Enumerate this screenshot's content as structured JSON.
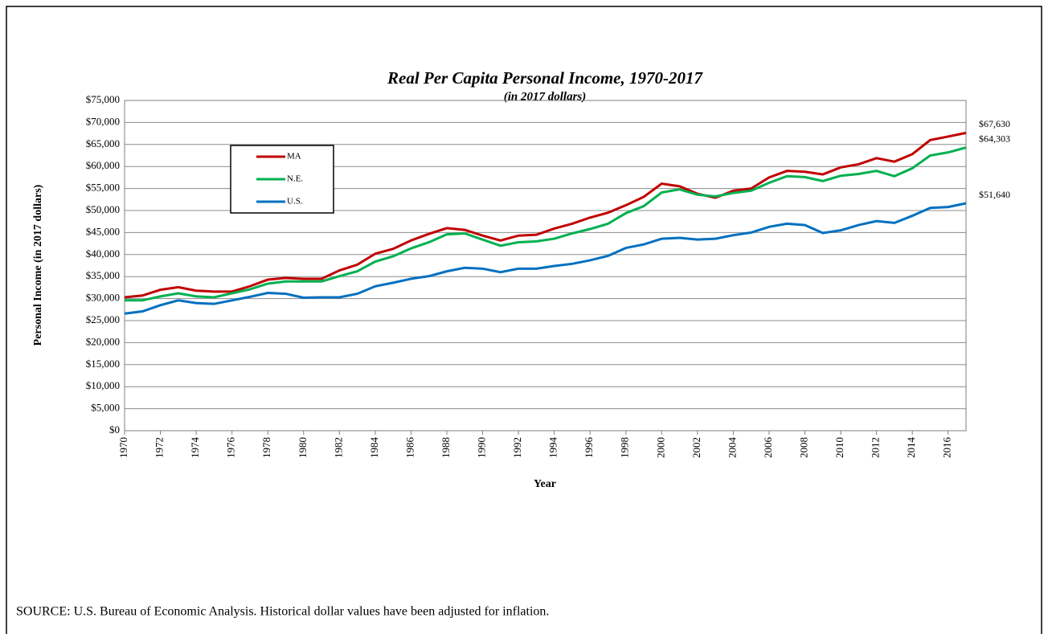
{
  "chart_data": {
    "type": "line",
    "title": "Real Per Capita Personal Income, 1970-2017",
    "subtitle": "(in 2017 dollars)",
    "x_label": "Year",
    "y_label": "Personal Income (in 2017 dollars)",
    "source": "SOURCE:  U.S. Bureau of Economic Analysis. Historical dollar values have been adjusted for inflation.",
    "x": [
      1970,
      1971,
      1972,
      1973,
      1974,
      1975,
      1976,
      1977,
      1978,
      1979,
      1980,
      1981,
      1982,
      1983,
      1984,
      1985,
      1986,
      1987,
      1988,
      1989,
      1990,
      1991,
      1992,
      1993,
      1994,
      1995,
      1996,
      1997,
      1998,
      1999,
      2000,
      2001,
      2002,
      2003,
      2004,
      2005,
      2006,
      2007,
      2008,
      2009,
      2010,
      2011,
      2012,
      2013,
      2014,
      2015,
      2016,
      2017
    ],
    "xlim": [
      1970,
      2017
    ],
    "xticks": [
      1970,
      1972,
      1974,
      1976,
      1978,
      1980,
      1982,
      1984,
      1986,
      1988,
      1990,
      1992,
      1994,
      1996,
      1998,
      2000,
      2002,
      2004,
      2006,
      2008,
      2010,
      2012,
      2014,
      2016
    ],
    "ylim": [
      0,
      75000
    ],
    "yticks": [
      {
        "value": 0,
        "label": "$0"
      },
      {
        "value": 5000,
        "label": "$5,000"
      },
      {
        "value": 10000,
        "label": "$10,000"
      },
      {
        "value": 15000,
        "label": "$15,000"
      },
      {
        "value": 20000,
        "label": "$20,000"
      },
      {
        "value": 25000,
        "label": "$25,000"
      },
      {
        "value": 30000,
        "label": "$30,000"
      },
      {
        "value": 35000,
        "label": "$35,000"
      },
      {
        "value": 40000,
        "label": "$40,000"
      },
      {
        "value": 45000,
        "label": "$45,000"
      },
      {
        "value": 50000,
        "label": "$50,000"
      },
      {
        "value": 55000,
        "label": "$55,000"
      },
      {
        "value": 60000,
        "label": "$60,000"
      },
      {
        "value": 65000,
        "label": "$65,000"
      },
      {
        "value": 70000,
        "label": "$70,000"
      },
      {
        "value": 75000,
        "label": "$75,000"
      }
    ],
    "grid": true,
    "legend": "upper left",
    "series": [
      {
        "name": "MA",
        "color": "#c00000",
        "values": [
          30300,
          30700,
          32000,
          32600,
          31800,
          31600,
          31600,
          32800,
          34300,
          34700,
          34500,
          34500,
          36400,
          37700,
          40200,
          41300,
          43200,
          44700,
          46000,
          45600,
          44300,
          43200,
          44300,
          44500,
          45900,
          47000,
          48400,
          49500,
          51200,
          53100,
          56100,
          55500,
          53800,
          52900,
          54500,
          55000,
          57500,
          59000,
          58800,
          58200,
          59800,
          60500,
          61900,
          61100,
          62800,
          66000,
          66800,
          67630
        ],
        "value_labels": [
          null,
          null,
          null,
          null,
          null,
          null,
          null,
          null,
          null,
          null,
          null,
          null,
          null,
          null,
          null,
          null,
          null,
          null,
          null,
          null,
          null,
          null,
          null,
          null,
          null,
          null,
          null,
          null,
          null,
          null,
          null,
          null,
          null,
          null,
          null,
          null,
          null,
          null,
          null,
          null,
          null,
          null,
          null,
          null,
          null,
          null,
          null,
          "$67,630"
        ]
      },
      {
        "name": "N.E.",
        "color": "#00b050",
        "values": [
          29600,
          29600,
          30500,
          31200,
          30500,
          30300,
          31200,
          32100,
          33400,
          33900,
          33900,
          33900,
          35100,
          36200,
          38400,
          39600,
          41400,
          42800,
          44600,
          44800,
          43400,
          42000,
          42800,
          43000,
          43600,
          44800,
          45800,
          47000,
          49400,
          51000,
          54100,
          54800,
          53600,
          53200,
          54000,
          54500,
          56300,
          57800,
          57600,
          56700,
          57900,
          58300,
          59000,
          57800,
          59600,
          62500,
          63200,
          64303
        ],
        "value_labels": [
          null,
          null,
          null,
          null,
          null,
          null,
          null,
          null,
          null,
          null,
          null,
          null,
          null,
          null,
          null,
          null,
          null,
          null,
          null,
          null,
          null,
          null,
          null,
          null,
          null,
          null,
          null,
          null,
          null,
          null,
          null,
          null,
          null,
          null,
          null,
          null,
          null,
          null,
          null,
          null,
          null,
          null,
          null,
          null,
          null,
          null,
          null,
          "$64,303"
        ]
      },
      {
        "name": "U.S.",
        "color": "#0070c0",
        "values": [
          26600,
          27100,
          28500,
          29600,
          29000,
          28800,
          29600,
          30400,
          31300,
          31100,
          30200,
          30300,
          30300,
          31100,
          32800,
          33600,
          34500,
          35100,
          36200,
          37000,
          36800,
          36000,
          36800,
          36800,
          37400,
          37900,
          38700,
          39700,
          41500,
          42300,
          43600,
          43800,
          43400,
          43600,
          44400,
          45000,
          46300,
          47000,
          46700,
          44900,
          45500,
          46700,
          47600,
          47200,
          48800,
          50600,
          50800,
          51640
        ],
        "value_labels": [
          null,
          null,
          null,
          null,
          null,
          null,
          null,
          null,
          null,
          null,
          null,
          null,
          null,
          null,
          null,
          null,
          null,
          null,
          null,
          null,
          null,
          null,
          null,
          null,
          null,
          null,
          null,
          null,
          null,
          null,
          null,
          null,
          null,
          null,
          null,
          null,
          null,
          null,
          null,
          null,
          null,
          null,
          null,
          null,
          null,
          null,
          null,
          "$51,640"
        ]
      }
    ]
  }
}
